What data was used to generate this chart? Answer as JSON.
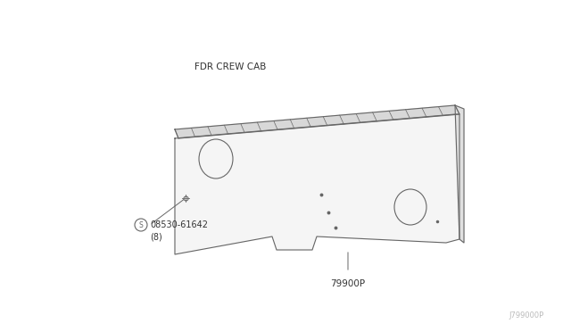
{
  "bg_color": "#ffffff",
  "title_label": "FDR CREW CAB",
  "title_fontsize": 7.5,
  "part_label_s": "08530-61642",
  "part_label_8": "(8)",
  "part_label_2": "79900P",
  "watermark": "J799000P",
  "line_color": "#666666",
  "line_width": 0.8,
  "hatch_color": "#555555",
  "face_color": "#f5f5f5",
  "top_strip_color": "#d8d8d8"
}
